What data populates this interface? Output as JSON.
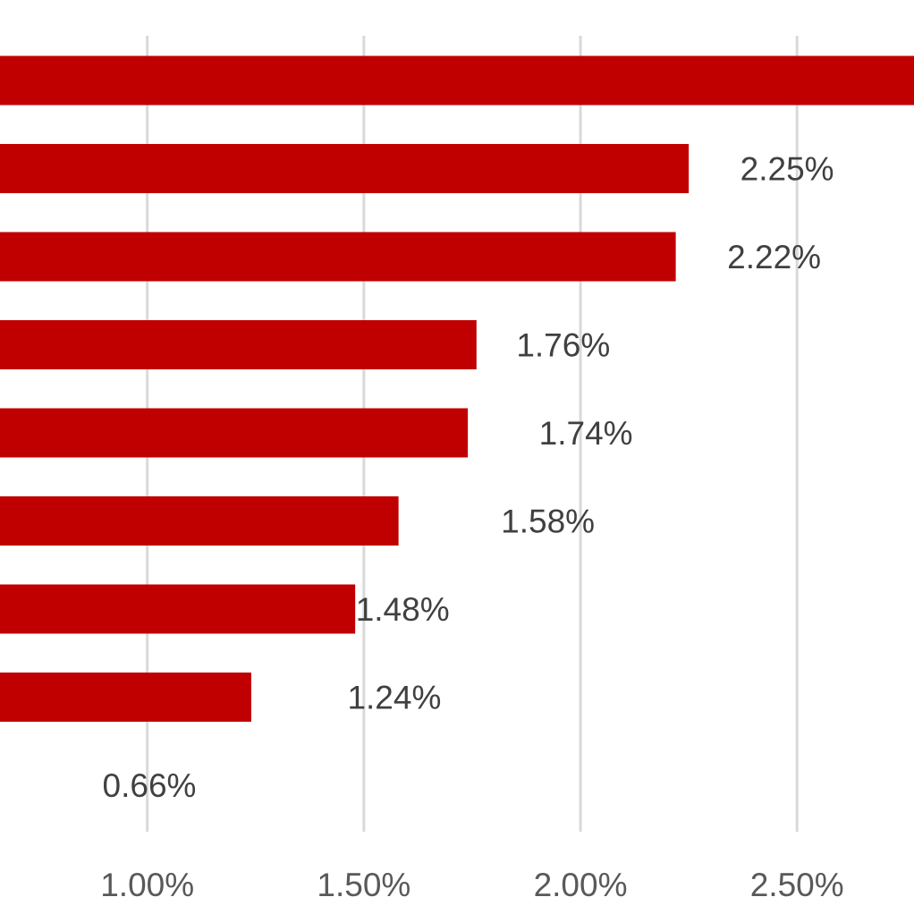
{
  "chart_data": {
    "type": "bar",
    "orientation": "horizontal",
    "values": [
      2.78,
      2.25,
      2.22,
      1.76,
      1.74,
      1.58,
      1.48,
      1.24,
      0.66
    ],
    "data_labels": [
      "",
      "2.25%",
      "2.22%",
      "1.76%",
      "1.74%",
      "1.58%",
      "1.48%",
      "1.24%",
      "0.66%"
    ],
    "x_ticks": [
      {
        "value": 1.0,
        "label": "1.00%"
      },
      {
        "value": 1.5,
        "label": "1.50%"
      },
      {
        "value": 2.0,
        "label": "2.00%"
      },
      {
        "value": 2.5,
        "label": "2.50%"
      }
    ],
    "xlim": [
      0.66,
      2.77
    ],
    "grid": true,
    "legend": "none",
    "bar_color": "#c00000",
    "gridline_color": "#d9d9d9",
    "label_color": "#404040",
    "tick_color": "#595959"
  }
}
